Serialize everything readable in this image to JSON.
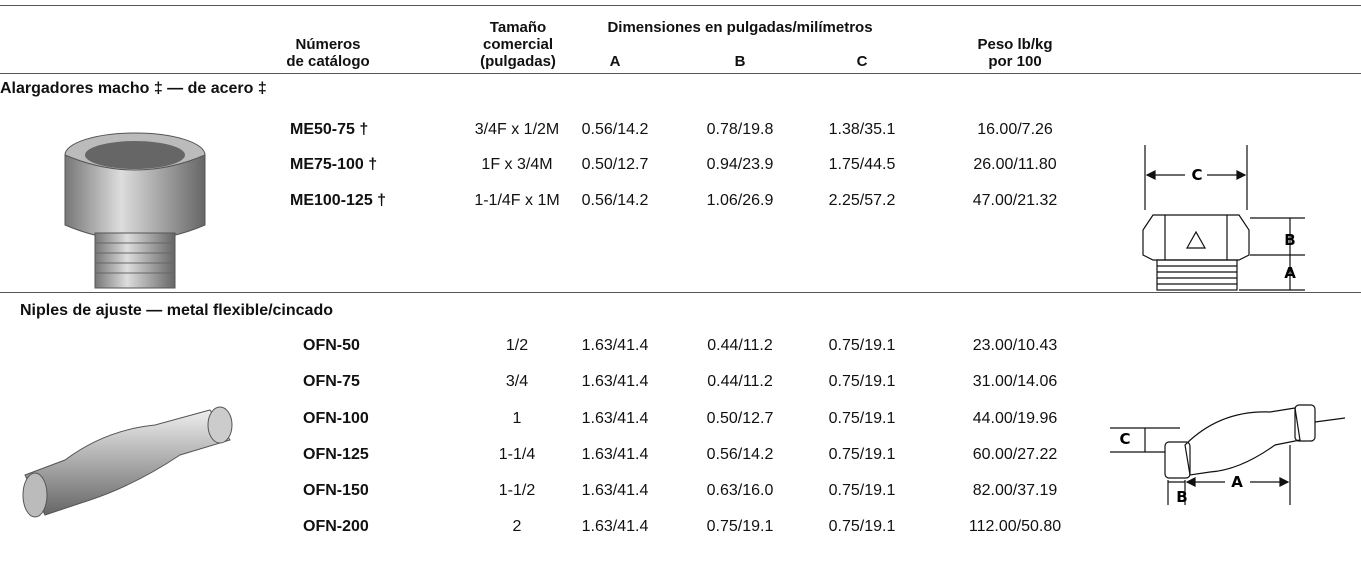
{
  "header": {
    "catalog": [
      "Números",
      "de catálogo"
    ],
    "size": [
      "Tamaño",
      "comercial",
      "(pulgadas)"
    ],
    "dimensions": "Dimensiones en pulgadas/milímetros",
    "dims": [
      "A",
      "B",
      "C"
    ],
    "weight": [
      "Peso lb/kg",
      "por 100"
    ]
  },
  "sections": [
    {
      "title": "Alargadores macho ‡ — de acero ‡",
      "rows": [
        [
          "ME50-75 †",
          "3/4F x 1/2M",
          "0.56/14.2",
          "0.78/19.8",
          "1.38/35.1",
          "16.00/7.26"
        ],
        [
          "ME75-100 †",
          "1F x 3/4M",
          "0.50/12.7",
          "0.94/23.9",
          "1.75/44.5",
          "26.00/11.80"
        ],
        [
          "ME100-125 †",
          "1-1/4F x 1M",
          "0.56/14.2",
          "1.06/26.9",
          "2.25/57.2",
          "47.00/21.32"
        ]
      ],
      "diagram_labels": [
        "C",
        "B",
        "A"
      ]
    },
    {
      "title": "Niples de ajuste — metal flexible/cincado",
      "rows": [
        [
          "OFN-50",
          "1/2",
          "1.63/41.4",
          "0.44/11.2",
          "0.75/19.1",
          "23.00/10.43"
        ],
        [
          "OFN-75",
          "3/4",
          "1.63/41.4",
          "0.44/11.2",
          "0.75/19.1",
          "31.00/14.06"
        ],
        [
          "OFN-100",
          "1",
          "1.63/41.4",
          "0.50/12.7",
          "0.75/19.1",
          "44.00/19.96"
        ],
        [
          "OFN-125",
          "1-1/4",
          "1.63/41.4",
          "0.56/14.2",
          "0.75/19.1",
          "60.00/27.22"
        ],
        [
          "OFN-150",
          "1-1/2",
          "1.63/41.4",
          "0.63/16.0",
          "0.75/19.1",
          "82.00/37.19"
        ],
        [
          "OFN-200",
          "2",
          "1.63/41.4",
          "0.75/19.1",
          "0.75/19.1",
          "112.00/50.80"
        ]
      ],
      "diagram_labels": [
        "C",
        "A",
        "B"
      ]
    }
  ]
}
